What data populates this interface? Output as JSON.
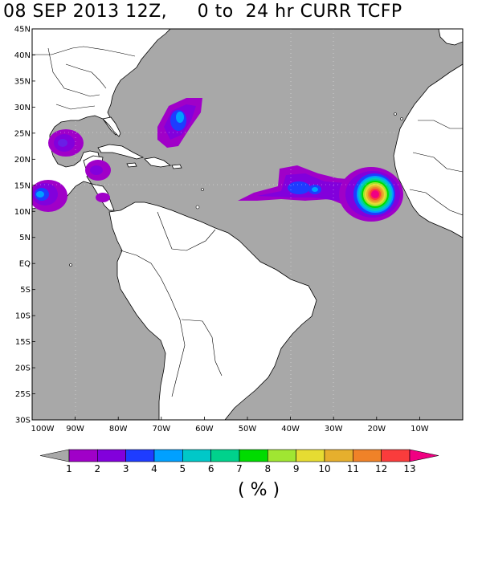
{
  "title": "08 SEP 2013 12Z,     0 to  24 hr CURR TCFP",
  "units": "( % )",
  "colors": {
    "ocean": "#a8a8a8",
    "land": "#ffffff",
    "border": "#000000"
  },
  "map": {
    "lon_range": [
      -100,
      0
    ],
    "lat_range": [
      -30,
      45
    ],
    "lat_labels": [
      "45N",
      "40N",
      "35N",
      "30N",
      "25N",
      "20N",
      "15N",
      "10N",
      "5N",
      "EQ",
      "5S",
      "10S",
      "15S",
      "20S",
      "25S",
      "30S"
    ],
    "lon_labels": [
      "100W",
      "90W",
      "80W",
      "70W",
      "60W",
      "50W",
      "40W",
      "30W",
      "20W",
      "10W"
    ]
  },
  "colorbar": {
    "labels": [
      "1",
      "2",
      "3",
      "4",
      "5",
      "6",
      "7",
      "8",
      "9",
      "10",
      "11",
      "12",
      "13"
    ],
    "colors": [
      "#a000c8",
      "#8200dc",
      "#1e3cff",
      "#00a0ff",
      "#00c8c8",
      "#00d28c",
      "#00dc00",
      "#a0e632",
      "#e6dc32",
      "#e6af2d",
      "#f08228",
      "#fa3c3c",
      "#f00082"
    ],
    "under_color": "#a8a8a8",
    "over_color": "#f00082"
  },
  "probability_areas": [
    {
      "name": "gulf-of-mexico",
      "peak": 3
    },
    {
      "name": "bay-of-campeche",
      "peak": 2
    },
    {
      "name": "west-caribbean",
      "peak": 2
    },
    {
      "name": "east-pacific",
      "peak": 4
    },
    {
      "name": "bahamas-east",
      "peak": 4
    },
    {
      "name": "central-atlantic",
      "peak": 4
    },
    {
      "name": "eastern-atlantic-cape-verde",
      "peak": 13
    }
  ]
}
